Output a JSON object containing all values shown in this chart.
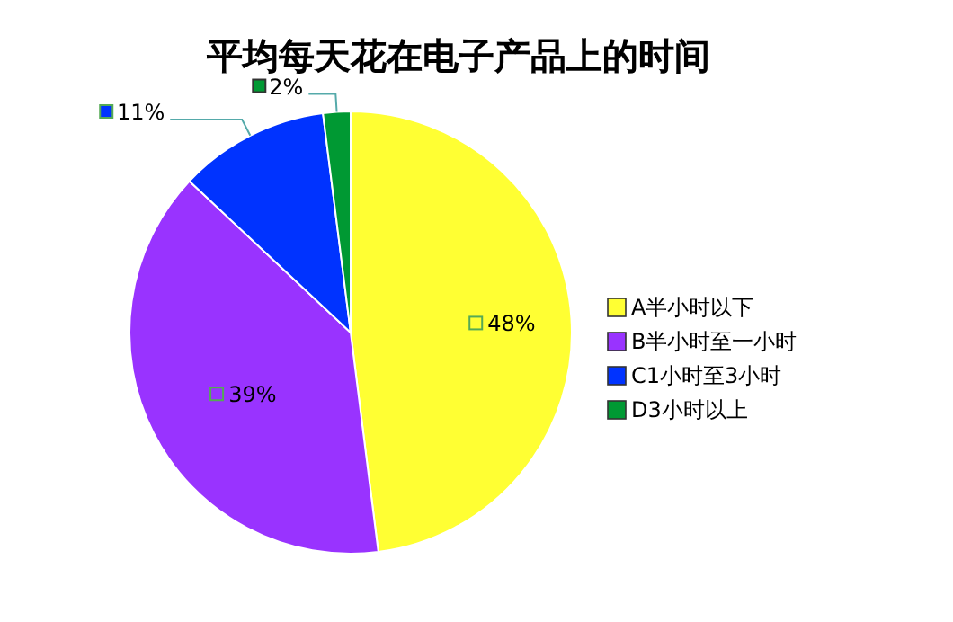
{
  "chart_data": {
    "type": "pie",
    "title": "平均每天花在电子产品上的时间",
    "categories": [
      "A半小时以下",
      "B半小时至一小时",
      "C1小时至3小时",
      "D3小时以上"
    ],
    "values": [
      48,
      39,
      11,
      2
    ],
    "colors": [
      "#ffff33",
      "#9933ff",
      "#0033ff",
      "#009933"
    ],
    "value_labels": [
      "48%",
      "39%",
      "11%",
      "2%"
    ],
    "legend": "right"
  }
}
